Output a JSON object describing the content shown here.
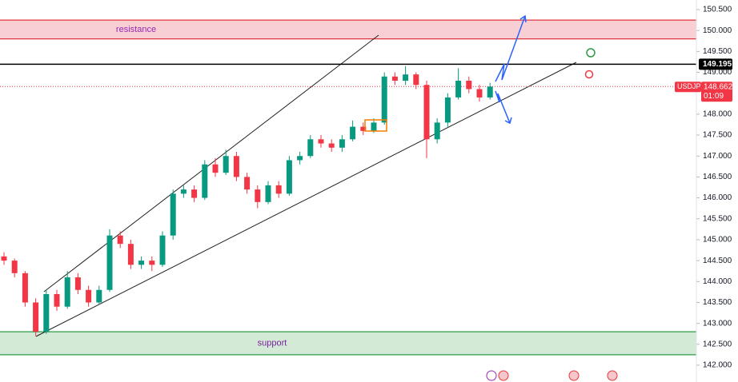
{
  "chart_data": {
    "type": "candlestick",
    "symbol": "USDJPY",
    "countdown": "01:09",
    "open": [
      144.6,
      144.5,
      144.2,
      143.5,
      142.8,
      143.7,
      143.4,
      144.1,
      143.8,
      143.5,
      143.8,
      145.1,
      144.9,
      144.4,
      144.5,
      144.4,
      145.1,
      146.1,
      146.2,
      146.0,
      146.8,
      146.6,
      147.0,
      146.5,
      146.2,
      145.9,
      146.3,
      146.1,
      146.9,
      147.0,
      147.4,
      147.3,
      147.2,
      147.4,
      147.7,
      147.6,
      147.8,
      148.9,
      148.8,
      148.95,
      148.7,
      147.4,
      147.8,
      148.4,
      148.8,
      148.6,
      148.4
    ],
    "high": [
      144.7,
      144.55,
      144.25,
      143.6,
      143.8,
      143.8,
      144.25,
      144.2,
      143.9,
      143.9,
      145.25,
      145.2,
      145.0,
      144.6,
      144.6,
      145.2,
      146.2,
      146.3,
      146.3,
      146.9,
      146.95,
      147.15,
      147.1,
      146.6,
      146.3,
      146.4,
      146.4,
      147.0,
      147.1,
      147.5,
      147.5,
      147.4,
      147.5,
      147.85,
      147.8,
      147.9,
      149.0,
      149.0,
      149.15,
      149.0,
      148.8,
      147.9,
      148.5,
      149.1,
      148.9,
      148.7,
      148.75
    ],
    "low": [
      144.4,
      144.1,
      143.4,
      142.7,
      142.75,
      143.3,
      143.35,
      143.7,
      143.4,
      143.45,
      143.75,
      144.8,
      144.3,
      144.3,
      144.25,
      144.35,
      145.0,
      146.0,
      145.9,
      145.95,
      146.5,
      146.55,
      146.4,
      146.1,
      145.75,
      145.85,
      146.0,
      146.05,
      146.8,
      146.95,
      147.2,
      147.1,
      147.1,
      147.35,
      147.5,
      147.55,
      147.75,
      148.7,
      148.7,
      148.6,
      146.95,
      147.3,
      147.7,
      148.35,
      148.5,
      148.3,
      148.35
    ],
    "close": [
      144.5,
      144.2,
      143.5,
      142.8,
      143.7,
      143.4,
      144.1,
      143.8,
      143.5,
      143.8,
      145.1,
      144.9,
      144.4,
      144.5,
      144.4,
      145.1,
      146.1,
      146.2,
      146.0,
      146.8,
      146.6,
      147.0,
      146.5,
      146.2,
      145.9,
      146.3,
      146.1,
      146.9,
      147.0,
      147.4,
      147.3,
      147.2,
      147.4,
      147.7,
      147.6,
      147.8,
      148.9,
      148.8,
      148.95,
      148.7,
      147.4,
      147.8,
      148.4,
      148.8,
      148.6,
      148.4,
      148.66
    ],
    "up_color": "#089981",
    "down_color": "#f23645",
    "ylim": [
      142.0,
      150.5
    ],
    "yticks": [
      {
        "value": 150.5,
        "label": "150.500"
      },
      {
        "value": 150.0,
        "label": "150.000"
      },
      {
        "value": 149.5,
        "label": "149.500"
      },
      {
        "value": 149.0,
        "label": "149.000"
      },
      {
        "value": 148.0,
        "label": "148.000"
      },
      {
        "value": 147.5,
        "label": "147.500"
      },
      {
        "value": 147.0,
        "label": "147.000"
      },
      {
        "value": 146.5,
        "label": "146.500"
      },
      {
        "value": 146.0,
        "label": "146.000"
      },
      {
        "value": 145.5,
        "label": "145.500"
      },
      {
        "value": 145.0,
        "label": "145.000"
      },
      {
        "value": 144.5,
        "label": "144.500"
      },
      {
        "value": 144.0,
        "label": "144.000"
      },
      {
        "value": 143.5,
        "label": "143.500"
      },
      {
        "value": 143.0,
        "label": "143.000"
      },
      {
        "value": 142.5,
        "label": "142.500"
      },
      {
        "value": 142.0,
        "label": "142.000"
      }
    ],
    "zones": [
      {
        "label": "resistance",
        "from": 149.8,
        "to": 150.25,
        "fill": "#f8d0d4",
        "stroke": "#e0343f",
        "text_color": "#9c27b0"
      },
      {
        "label": "support",
        "from": 142.25,
        "to": 142.8,
        "fill": "#d3ead6",
        "stroke": "#2e9a46",
        "text_color": "#7b1fa2"
      }
    ],
    "price_lines": [
      {
        "value": 149.195,
        "color": "#000000",
        "dashed": false
      },
      {
        "value": 148.662,
        "color": "#f23645",
        "dashed": true
      }
    ]
  }
}
